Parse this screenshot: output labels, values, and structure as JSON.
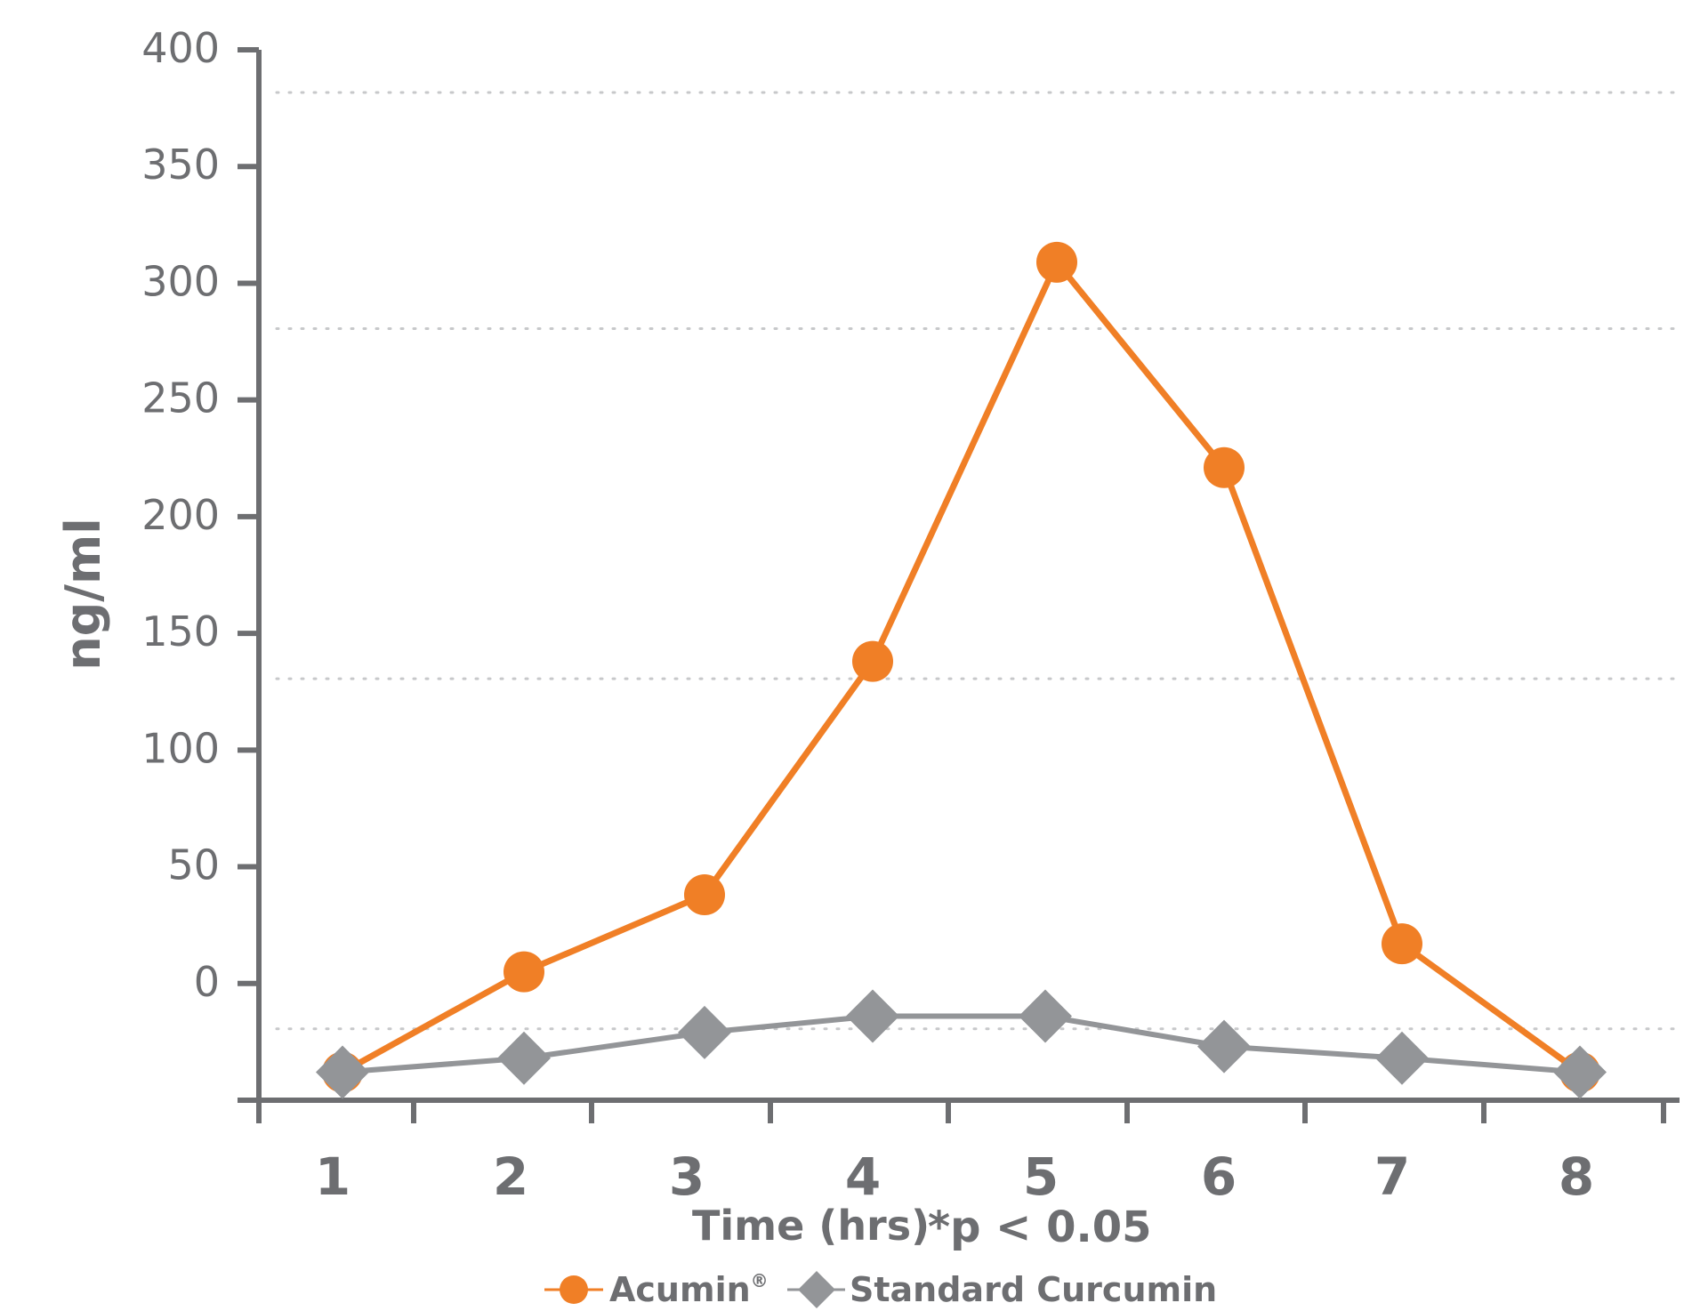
{
  "chart_data": {
    "type": "line",
    "title": "",
    "xlabel": "Time (hrs)",
    "ylabel": "ng/ml",
    "note": "*p < 0.05",
    "categories": [
      "1",
      "2",
      "3",
      "4",
      "5",
      "6",
      "7",
      "8"
    ],
    "yticks": [
      "0",
      "50",
      "100",
      "150",
      "200",
      "250",
      "300",
      "350",
      "400"
    ],
    "ylim": [
      -50,
      400
    ],
    "grid": "dotted horizontal",
    "legend_position": "bottom",
    "series": [
      {
        "name": "Acumin",
        "name_sup": "®",
        "color": "#f07f26",
        "marker": "circle",
        "values": [
          -38,
          5,
          38,
          138,
          309,
          221,
          17,
          -38
        ]
      },
      {
        "name": "Standard Curcumin",
        "color": "#939598",
        "marker": "diamond",
        "values": [
          -38,
          -32,
          -21,
          -14,
          -14,
          -27,
          -32,
          -38
        ]
      }
    ],
    "colors": {
      "axis": "#6d6e71",
      "grid": "#c7c8ca",
      "text": "#6d6e71"
    }
  }
}
